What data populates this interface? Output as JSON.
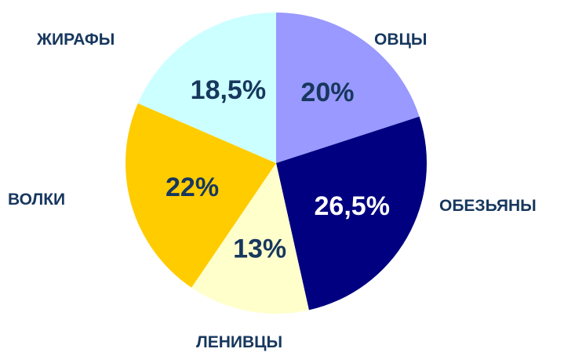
{
  "chart_data": {
    "type": "pie",
    "start_angle_deg": 0,
    "direction": "clockwise",
    "slices": [
      {
        "label": "ОВЦЫ",
        "value": 20,
        "value_label": "20%",
        "color": "#9999ff",
        "value_text_color": "#17375e"
      },
      {
        "label": "ОБЕЗЬЯНЫ",
        "value": 26.5,
        "value_label": "26,5%",
        "color": "#000080",
        "value_text_color": "#ffffff"
      },
      {
        "label": "ЛЕНИВЦЫ",
        "value": 13,
        "value_label": "13%",
        "color": "#ffffcc",
        "value_text_color": "#17375e"
      },
      {
        "label": "ВОЛКИ",
        "value": 22,
        "value_label": "22%",
        "color": "#ffcc00",
        "value_text_color": "#17375e"
      },
      {
        "label": "ЖИРАФЫ",
        "value": 18.5,
        "value_label": "18,5%",
        "color": "#ccffff",
        "value_text_color": "#17375e"
      }
    ]
  }
}
